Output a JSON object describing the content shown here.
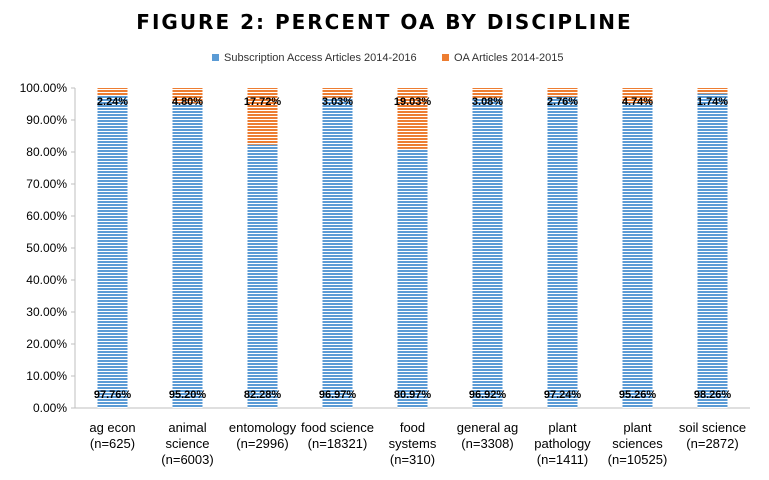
{
  "chart_data": {
    "type": "bar",
    "stacked": true,
    "title": "FIGURE 2: PERCENT OA BY DISCIPLINE",
    "xlabel": "",
    "ylabel": "",
    "ylim": [
      0,
      100
    ],
    "y_ticks": [
      "0.00%",
      "10.00%",
      "20.00%",
      "30.00%",
      "40.00%",
      "50.00%",
      "60.00%",
      "70.00%",
      "80.00%",
      "90.00%",
      "100.00%"
    ],
    "categories": [
      [
        "ag econ",
        "(n=625)"
      ],
      [
        "animal",
        "science",
        "(n=6003)"
      ],
      [
        "entomology",
        "(n=2996)"
      ],
      [
        "food science",
        "(n=18321)"
      ],
      [
        "food",
        "systems",
        "(n=310)"
      ],
      [
        "general ag",
        "(n=3308)"
      ],
      [
        "plant",
        "pathology",
        "(n=1411)"
      ],
      [
        "plant",
        "sciences",
        "(n=10525)"
      ],
      [
        "soil science",
        "(n=2872)"
      ]
    ],
    "series": [
      {
        "name": "Subscription Access Articles 2014-2016",
        "color": "#5b9bd5",
        "values": [
          97.76,
          95.2,
          82.28,
          96.97,
          80.97,
          96.92,
          97.24,
          95.26,
          98.26
        ],
        "labels": [
          "97.76%",
          "95.20%",
          "82.28%",
          "96.97%",
          "80.97%",
          "96.92%",
          "97.24%",
          "95.26%",
          "98.26%"
        ]
      },
      {
        "name": "OA Articles 2014-2015",
        "color": "#ed7d31",
        "values": [
          2.24,
          4.8,
          17.72,
          3.03,
          19.03,
          3.08,
          2.76,
          4.74,
          1.74
        ],
        "labels": [
          "2.24%",
          "4.80%",
          "17.72%",
          "3.03%",
          "19.03%",
          "3.08%",
          "2.76%",
          "4.74%",
          "1.74%"
        ]
      }
    ],
    "legend_position": "top"
  }
}
